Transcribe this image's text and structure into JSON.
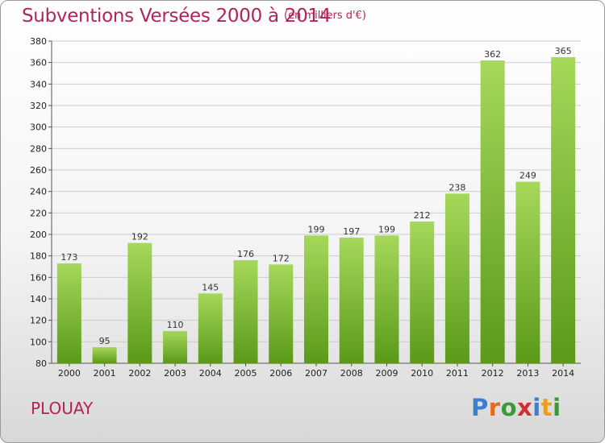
{
  "title": "Subventions Versées 2000 à 2014",
  "unit": "(en milliers d'€)",
  "commune": "PLOUAY",
  "logo": {
    "text": "Proxiti",
    "letters": [
      "P",
      "r",
      "o",
      "x",
      "i",
      "t",
      "i"
    ],
    "colors": [
      "#3a7fd0",
      "#e86a1a",
      "#3a9a3a",
      "#d03030",
      "#3a7fd0",
      "#e8a01a",
      "#3a9a3a"
    ]
  },
  "colors": {
    "bar_light": "#a6d85a",
    "bar_dark": "#5a9a18",
    "title": "#b0245a"
  },
  "chart_data": {
    "type": "bar",
    "categories": [
      "2000",
      "2001",
      "2002",
      "2003",
      "2004",
      "2005",
      "2006",
      "2007",
      "2008",
      "2009",
      "2010",
      "2011",
      "2012",
      "2013",
      "2014"
    ],
    "values": [
      173,
      95,
      192,
      110,
      145,
      176,
      172,
      199,
      197,
      199,
      212,
      238,
      362,
      249,
      365
    ],
    "ylim": [
      80,
      380
    ],
    "yticks": [
      80,
      100,
      120,
      140,
      160,
      180,
      200,
      220,
      240,
      260,
      280,
      300,
      320,
      340,
      360,
      380
    ],
    "grid": true,
    "xlabel": "",
    "ylabel": ""
  }
}
